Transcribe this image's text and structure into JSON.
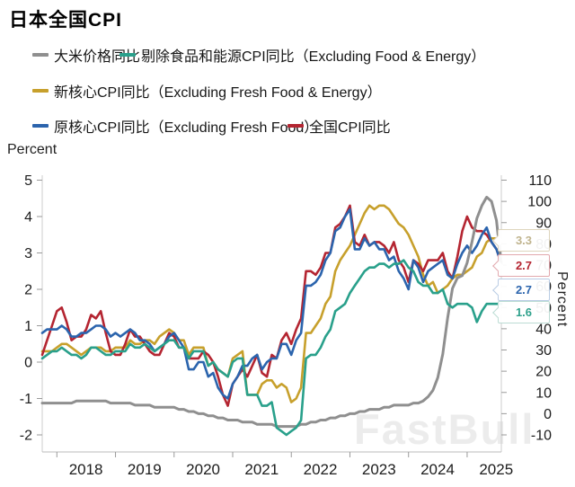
{
  "title": "日本全国CPI",
  "axis_unit_left": "Percent",
  "axis_unit_right": "Percent",
  "watermark": "FastBull",
  "chart_data": {
    "type": "line",
    "frequency": "monthly",
    "x_start": "2017-10",
    "x_end": "2025-08",
    "x_tick_years": [
      "2018",
      "2019",
      "2020",
      "2021",
      "2022",
      "2023",
      "2024",
      "2025"
    ],
    "grid": false,
    "legend_position": "top",
    "left_axis": {
      "label": "Percent",
      "ticks": [
        5,
        4,
        3,
        2,
        1,
        0,
        -1,
        -2
      ],
      "range": [
        -2.1,
        5.1
      ]
    },
    "right_axis": {
      "label": "Percent",
      "ticks": [
        110,
        100,
        90,
        80,
        70,
        60,
        50,
        40,
        30,
        20,
        10,
        0,
        -10
      ],
      "range": [
        -12,
        112
      ]
    },
    "series": [
      {
        "name": "大米价格同比",
        "axis": "right",
        "color": "#8f8f8f",
        "values": [
          5,
          5,
          5,
          5,
          5,
          5,
          5,
          6,
          6,
          6,
          6,
          6,
          6,
          6,
          5,
          5,
          5,
          5,
          5,
          4,
          4,
          4,
          4,
          3,
          3,
          3,
          3,
          3,
          2,
          2,
          1,
          1,
          0,
          0,
          -1,
          -1,
          -2,
          -2,
          -3,
          -3,
          -3,
          -4,
          -4,
          -4,
          -5,
          -5,
          -5,
          -5,
          -6,
          -6,
          -6,
          -6,
          -6,
          -5,
          -5,
          -4,
          -4,
          -3,
          -3,
          -2,
          -2,
          -1,
          -1,
          0,
          0,
          1,
          1,
          2,
          2,
          2,
          3,
          3,
          4,
          4,
          4,
          4,
          5,
          5,
          6,
          8,
          11,
          17,
          28,
          45,
          59,
          64,
          65,
          71,
          81,
          92,
          98,
          102,
          100,
          91,
          70
        ]
      },
      {
        "name": "剔除食品和能源CPI同比（Excluding Food & Energy）",
        "axis": "left",
        "color": "#29a08b",
        "values": [
          0.1,
          0.2,
          0.3,
          0.3,
          0.4,
          0.3,
          0.2,
          0.2,
          0.1,
          0.2,
          0.4,
          0.4,
          0.3,
          0.2,
          0.2,
          0.3,
          0.3,
          0.3,
          0.5,
          0.4,
          0.4,
          0.5,
          0.4,
          0.3,
          0.4,
          0.5,
          0.6,
          0.6,
          0.4,
          0.4,
          0.1,
          0.3,
          0.3,
          0.3,
          -0.1,
          0.0,
          -0.2,
          -0.3,
          -0.4,
          0.0,
          0.1,
          0.1,
          -0.9,
          -0.9,
          -0.9,
          -1.2,
          -1.2,
          -1.1,
          -1.8,
          -1.9,
          -2.0,
          -1.9,
          -1.8,
          -1.6,
          0.1,
          0.2,
          0.2,
          0.4,
          0.7,
          0.9,
          1.4,
          1.5,
          1.6,
          1.9,
          2.1,
          2.3,
          2.5,
          2.6,
          2.6,
          2.7,
          2.7,
          2.6,
          2.7,
          2.7,
          2.8,
          2.6,
          2.5,
          2.2,
          2.1,
          2.1,
          1.9,
          1.9,
          2.0,
          1.6,
          1.5,
          1.6,
          1.6,
          1.6,
          1.5,
          1.1,
          1.4,
          1.6,
          1.6,
          1.6,
          1.6
        ]
      },
      {
        "name": "新核心CPI同比（Excluding Fresh Food & Energy）",
        "axis": "left",
        "color": "#c7a02c",
        "values": [
          0.3,
          0.3,
          0.3,
          0.4,
          0.5,
          0.5,
          0.4,
          0.3,
          0.2,
          0.3,
          0.4,
          0.4,
          0.4,
          0.3,
          0.3,
          0.4,
          0.4,
          0.4,
          0.6,
          0.5,
          0.5,
          0.6,
          0.6,
          0.5,
          0.7,
          0.8,
          0.9,
          0.8,
          0.6,
          0.6,
          0.2,
          0.4,
          0.4,
          0.4,
          -0.1,
          0.0,
          -0.2,
          -0.3,
          -0.4,
          0.1,
          0.2,
          0.3,
          -0.9,
          -0.9,
          -0.9,
          -0.6,
          -0.5,
          -0.5,
          -0.7,
          -0.6,
          -0.7,
          -1.1,
          -1.0,
          -0.7,
          0.8,
          0.8,
          1.0,
          1.2,
          1.6,
          1.8,
          2.5,
          2.8,
          3.0,
          3.2,
          3.5,
          3.8,
          4.1,
          4.3,
          4.2,
          4.3,
          4.3,
          4.2,
          4.0,
          3.8,
          3.7,
          3.5,
          3.2,
          2.9,
          2.4,
          2.1,
          2.2,
          1.9,
          2.0,
          2.1,
          2.3,
          2.4,
          2.4,
          2.5,
          2.6,
          2.9,
          3.0,
          3.3,
          3.4,
          3.4,
          3.3
        ]
      },
      {
        "name": "原核心CPI同比（Excluding Fresh Food）",
        "axis": "left",
        "color": "#2b64ad",
        "values": [
          0.8,
          0.9,
          0.9,
          0.9,
          1.0,
          0.9,
          0.7,
          0.7,
          0.8,
          0.8,
          0.9,
          1.0,
          1.0,
          0.9,
          0.7,
          0.8,
          0.7,
          0.8,
          0.9,
          0.8,
          0.6,
          0.6,
          0.5,
          0.3,
          0.4,
          0.5,
          0.7,
          0.8,
          0.6,
          0.4,
          -0.2,
          -0.2,
          0.0,
          0.0,
          -0.4,
          -0.3,
          -0.7,
          -0.9,
          -1.0,
          -0.6,
          -0.4,
          -0.1,
          -0.1,
          0.1,
          0.2,
          -0.2,
          0.0,
          0.1,
          0.1,
          0.5,
          0.5,
          0.2,
          0.6,
          0.8,
          2.1,
          2.1,
          2.2,
          2.4,
          2.8,
          3.0,
          3.6,
          3.7,
          4.0,
          4.2,
          3.1,
          3.1,
          3.4,
          3.2,
          3.3,
          3.1,
          3.1,
          2.8,
          2.9,
          2.5,
          2.3,
          2.0,
          2.8,
          2.6,
          2.2,
          2.5,
          2.6,
          2.7,
          2.8,
          2.4,
          2.3,
          2.7,
          3.0,
          3.2,
          3.0,
          3.2,
          3.5,
          3.7,
          3.3,
          3.1,
          2.7
        ]
      },
      {
        "name": "全国CPI同比",
        "axis": "left",
        "color": "#b42531",
        "values": [
          0.2,
          0.6,
          1.0,
          1.4,
          1.5,
          1.1,
          0.6,
          0.7,
          0.7,
          0.9,
          1.3,
          1.2,
          1.4,
          0.8,
          0.3,
          0.2,
          0.2,
          0.5,
          0.9,
          0.7,
          0.7,
          0.5,
          0.3,
          0.2,
          0.2,
          0.5,
          0.8,
          0.7,
          0.4,
          0.4,
          0.1,
          0.1,
          0.1,
          0.3,
          0.2,
          0.0,
          -0.4,
          -0.9,
          -1.2,
          -0.6,
          -0.4,
          -0.2,
          -0.4,
          -0.1,
          0.2,
          -0.3,
          -0.4,
          0.2,
          0.1,
          0.6,
          0.8,
          0.5,
          0.9,
          1.2,
          2.5,
          2.5,
          2.4,
          2.6,
          3.0,
          3.0,
          3.7,
          3.8,
          4.0,
          4.3,
          3.3,
          3.2,
          3.5,
          3.2,
          3.3,
          3.3,
          3.2,
          3.0,
          3.3,
          2.8,
          2.6,
          2.2,
          2.8,
          2.7,
          2.5,
          2.8,
          2.8,
          2.8,
          3.0,
          2.5,
          2.3,
          2.9,
          3.6,
          4.0,
          3.7,
          3.6,
          3.6,
          3.5,
          3.3,
          3.1,
          2.7
        ]
      }
    ],
    "end_labels": [
      {
        "value": "3.3",
        "series": "新核心CPI同比（Excluding Fresh Food & Energy）",
        "text_color": "#c0b48e",
        "border_color": "#ded5bd"
      },
      {
        "value": "2.7",
        "series": "全国CPI同比",
        "text_color": "#b42531",
        "border_color": "#e2a9ae"
      },
      {
        "value": "2.7",
        "series": "原核心CPI同比（Excluding Fresh Food）",
        "text_color": "#2b64ad",
        "border_color": "#b9cce4"
      },
      {
        "value": "1.6",
        "series": "剔除食品和能源CPI同比（Excluding Food & Energy）",
        "text_color": "#2fa18c",
        "border_color": "#bcdcd4"
      }
    ]
  }
}
